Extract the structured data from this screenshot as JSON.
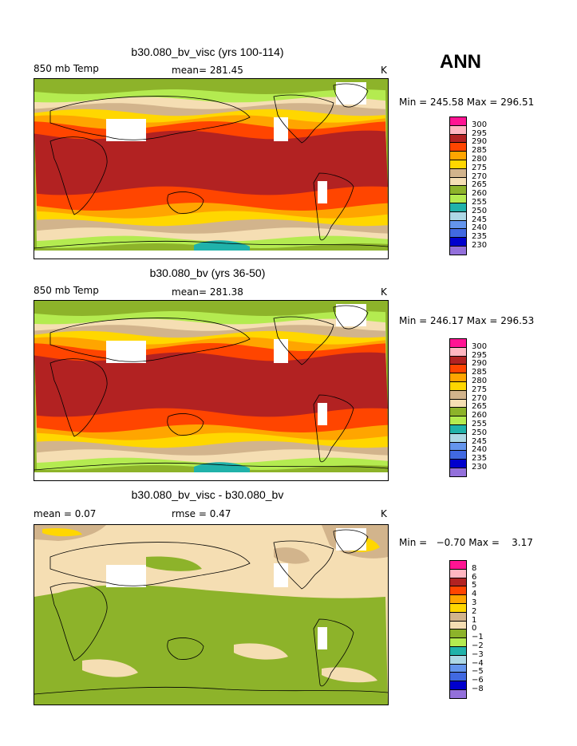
{
  "season_label": "ANN",
  "units": "K",
  "panels": [
    {
      "title": "b30.080_bv_visc (yrs 100-114)",
      "left_label": "850 mb Temp",
      "center_label": "mean= 281.45",
      "right_label": "K",
      "min_max": "Min = 245.58 Max = 296.51",
      "legend_levels": [
        "300",
        "295",
        "290",
        "285",
        "280",
        "275",
        "270",
        "265",
        "260",
        "255",
        "250",
        "245",
        "240",
        "235",
        "230"
      ]
    },
    {
      "title": "b30.080_bv (yrs 36-50)",
      "left_label": "850 mb Temp",
      "center_label": "mean= 281.38",
      "right_label": "K",
      "min_max": "Min = 246.17 Max = 296.53",
      "legend_levels": [
        "300",
        "295",
        "290",
        "285",
        "280",
        "275",
        "270",
        "265",
        "260",
        "255",
        "250",
        "245",
        "240",
        "235",
        "230"
      ]
    },
    {
      "title": "b30.080_bv_visc - b30.080_bv",
      "left_label": "mean =    0.07",
      "center_label": "rmse =    0.47",
      "right_label": "K",
      "min_max": "Min =   −0.70 Max =    3.17",
      "legend_levels": [
        "8",
        "6",
        "5",
        "4",
        "3",
        "2",
        "1",
        "0",
        "−1",
        "−2",
        "−3",
        "−4",
        "−5",
        "−6",
        "−8"
      ]
    }
  ],
  "colors": {
    "palette": [
      "#ff1493",
      "#ffb6c1",
      "#b22222",
      "#ff4500",
      "#ffa500",
      "#ffd700",
      "#d2b48c",
      "#f5deb3",
      "#8db32a",
      "#b4eb50",
      "#20b2aa",
      "#add8e6",
      "#6495ed",
      "#4169e1",
      "#0000cd",
      "#9370db"
    ],
    "land_mask": "#ffffff",
    "coast": "#000000"
  }
}
